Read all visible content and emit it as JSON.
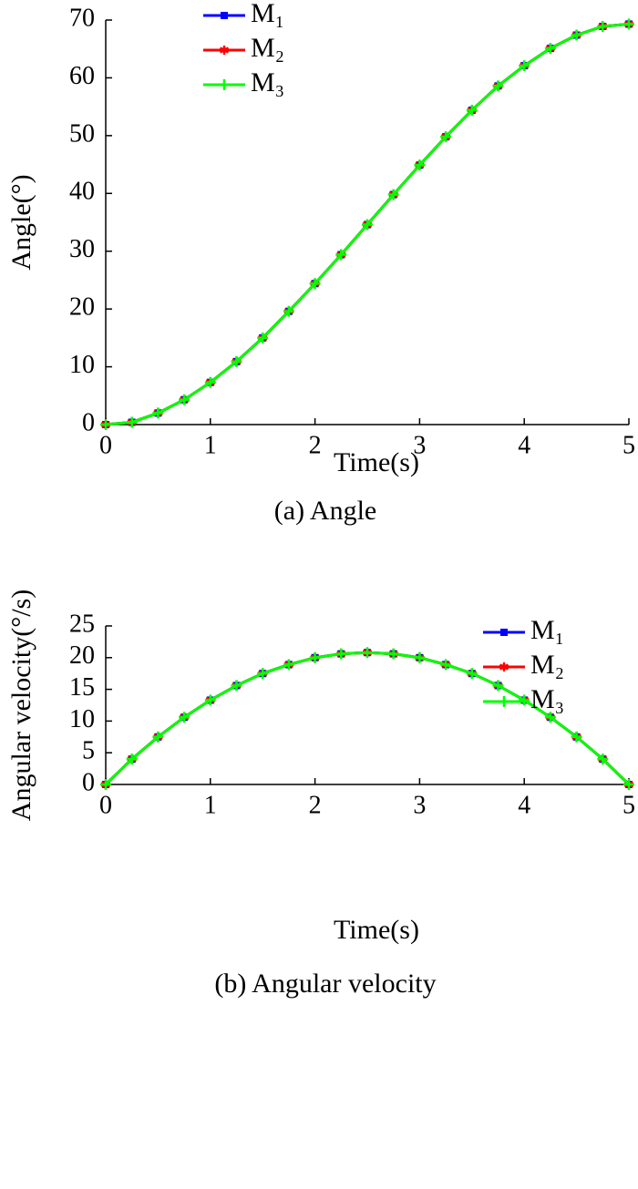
{
  "chart_data": [
    {
      "type": "line",
      "xlabel": "Time(s)",
      "ylabel": "Angle(°)",
      "caption": "(a) Angle",
      "x": [
        0,
        0.25,
        0.5,
        0.75,
        1,
        1.25,
        1.5,
        1.75,
        2,
        2.25,
        2.5,
        2.75,
        3,
        3.25,
        3.5,
        3.75,
        4,
        4.25,
        4.5,
        4.75,
        5
      ],
      "series": [
        {
          "name": "M₁",
          "color": "#0000ff",
          "marker": "square",
          "values": [
            0,
            0.4,
            2.0,
            4.3,
            7.3,
            10.9,
            15.0,
            19.6,
            24.4,
            29.4,
            34.6,
            39.8,
            44.9,
            49.8,
            54.4,
            58.6,
            62.1,
            65.1,
            67.4,
            68.9,
            69.3
          ]
        },
        {
          "name": "M₂",
          "color": "#ff0000",
          "marker": "asterisk",
          "values": [
            0,
            0.4,
            2.0,
            4.3,
            7.3,
            10.9,
            15.0,
            19.6,
            24.4,
            29.4,
            34.6,
            39.8,
            44.9,
            49.8,
            54.4,
            58.6,
            62.1,
            65.1,
            67.4,
            68.9,
            69.3
          ]
        },
        {
          "name": "M₃",
          "color": "#00ff00",
          "marker": "plus",
          "values": [
            0,
            0.4,
            2.0,
            4.3,
            7.3,
            10.9,
            15.0,
            19.6,
            24.4,
            29.4,
            34.6,
            39.8,
            44.9,
            49.8,
            54.4,
            58.6,
            62.1,
            65.1,
            67.4,
            68.9,
            69.3
          ]
        }
      ],
      "xlim": [
        0,
        5
      ],
      "xticks": [
        0,
        1,
        2,
        3,
        4,
        5
      ],
      "ylim": [
        0,
        70
      ],
      "yticks": [
        0,
        10,
        20,
        30,
        40,
        50,
        60,
        70
      ],
      "legend": "upper center"
    },
    {
      "type": "line",
      "xlabel": "Time(s)",
      "ylabel": "Angular velocity(°/s)",
      "caption": "(b) Angular velocity",
      "x": [
        0,
        0.25,
        0.5,
        0.75,
        1,
        1.25,
        1.5,
        1.75,
        2,
        2.25,
        2.5,
        2.75,
        3,
        3.25,
        3.5,
        3.75,
        4,
        4.25,
        4.5,
        4.75,
        5
      ],
      "series": [
        {
          "name": "M₁",
          "color": "#0000ff",
          "marker": "square",
          "values": [
            0,
            4.0,
            7.5,
            10.6,
            13.3,
            15.6,
            17.5,
            18.9,
            20.0,
            20.6,
            20.8,
            20.6,
            20.0,
            18.9,
            17.5,
            15.6,
            13.3,
            10.6,
            7.5,
            4.0,
            0
          ]
        },
        {
          "name": "M₂",
          "color": "#ff0000",
          "marker": "asterisk",
          "values": [
            0,
            4.0,
            7.5,
            10.6,
            13.3,
            15.6,
            17.5,
            18.9,
            20.0,
            20.6,
            20.8,
            20.6,
            20.0,
            18.9,
            17.5,
            15.6,
            13.3,
            10.6,
            7.5,
            4.0,
            0
          ]
        },
        {
          "name": "M₃",
          "color": "#00ff00",
          "marker": "plus",
          "values": [
            0,
            4.0,
            7.5,
            10.6,
            13.3,
            15.6,
            17.5,
            18.9,
            20.0,
            20.6,
            20.8,
            20.6,
            20.0,
            18.9,
            17.5,
            15.6,
            13.3,
            10.6,
            7.5,
            4.0,
            0
          ]
        }
      ],
      "xlim": [
        0,
        5
      ],
      "xticks": [
        0,
        1,
        2,
        3,
        4,
        5
      ],
      "ylim": [
        0,
        25
      ],
      "yticks": [
        0,
        5,
        10,
        15,
        20,
        25
      ],
      "legend": "upper right"
    }
  ]
}
